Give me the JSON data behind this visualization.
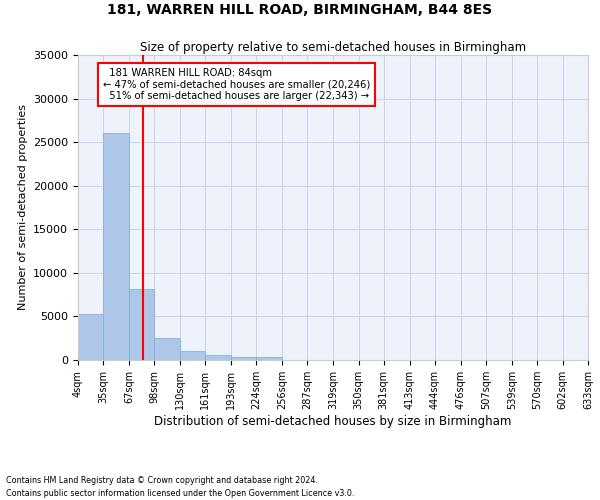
{
  "title": "181, WARREN HILL ROAD, BIRMINGHAM, B44 8ES",
  "subtitle": "Size of property relative to semi-detached houses in Birmingham",
  "xlabel": "Distribution of semi-detached houses by size in Birmingham",
  "ylabel": "Number of semi-detached properties",
  "footnote1": "Contains HM Land Registry data © Crown copyright and database right 2024.",
  "footnote2": "Contains public sector information licensed under the Open Government Licence v3.0.",
  "bin_edges": [
    4,
    35,
    67,
    98,
    130,
    161,
    193,
    224,
    256,
    287,
    319,
    350,
    381,
    413,
    444,
    476,
    507,
    539,
    570,
    602,
    633
  ],
  "bar_heights": [
    5300,
    26000,
    8100,
    2500,
    1000,
    600,
    350,
    300,
    0,
    0,
    0,
    0,
    0,
    0,
    0,
    0,
    0,
    0,
    0,
    0
  ],
  "bar_color": "#aec6e8",
  "bar_edgecolor": "#7aadd4",
  "grid_color": "#c8d4e8",
  "bg_color": "#eef2fa",
  "red_line_x": 84,
  "annotation_text": "  181 WARREN HILL ROAD: 84sqm\n← 47% of semi-detached houses are smaller (20,246)\n  51% of semi-detached houses are larger (22,343) →",
  "ylim": [
    0,
    35000
  ],
  "yticks": [
    0,
    5000,
    10000,
    15000,
    20000,
    25000,
    30000,
    35000
  ]
}
